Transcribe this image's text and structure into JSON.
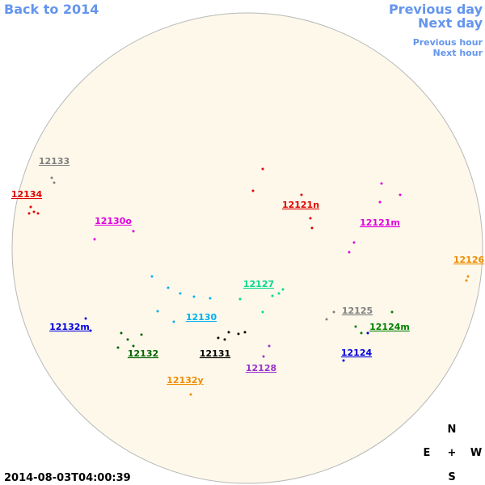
{
  "header": {
    "back_link": "Back to 2014",
    "previous_day": "Previous day",
    "next_day": "Next day",
    "previous_hour": "Previous hour",
    "next_hour": "Next hour"
  },
  "regions": [
    {
      "label": "12133",
      "color": "#808080"
    },
    {
      "label": "12134",
      "color": "#e00000"
    },
    {
      "label": "12130o",
      "color": "#e000e0"
    },
    {
      "label": "12121n",
      "color": "#e00000"
    },
    {
      "label": "12121m",
      "color": "#e000e0"
    },
    {
      "label": "12126",
      "color": "#ee8c00"
    },
    {
      "label": "12127",
      "color": "#00d890"
    },
    {
      "label": "12125",
      "color": "#808080"
    },
    {
      "label": "12132m",
      "color": "#0000e0"
    },
    {
      "label": "12130",
      "color": "#00b0f0"
    },
    {
      "label": "12124m",
      "color": "#008000"
    },
    {
      "label": "12132",
      "color": "#006400"
    },
    {
      "label": "12131",
      "color": "#000000"
    },
    {
      "label": "12124",
      "color": "#0000e0"
    },
    {
      "label": "12128",
      "color": "#9933cc"
    },
    {
      "label": "12132y",
      "color": "#ee8c00"
    }
  ],
  "compass": {
    "north": "N",
    "east": "E",
    "center": "+",
    "west": "W",
    "south": "S"
  },
  "timestamp": "2014-08-03T04:00:39"
}
